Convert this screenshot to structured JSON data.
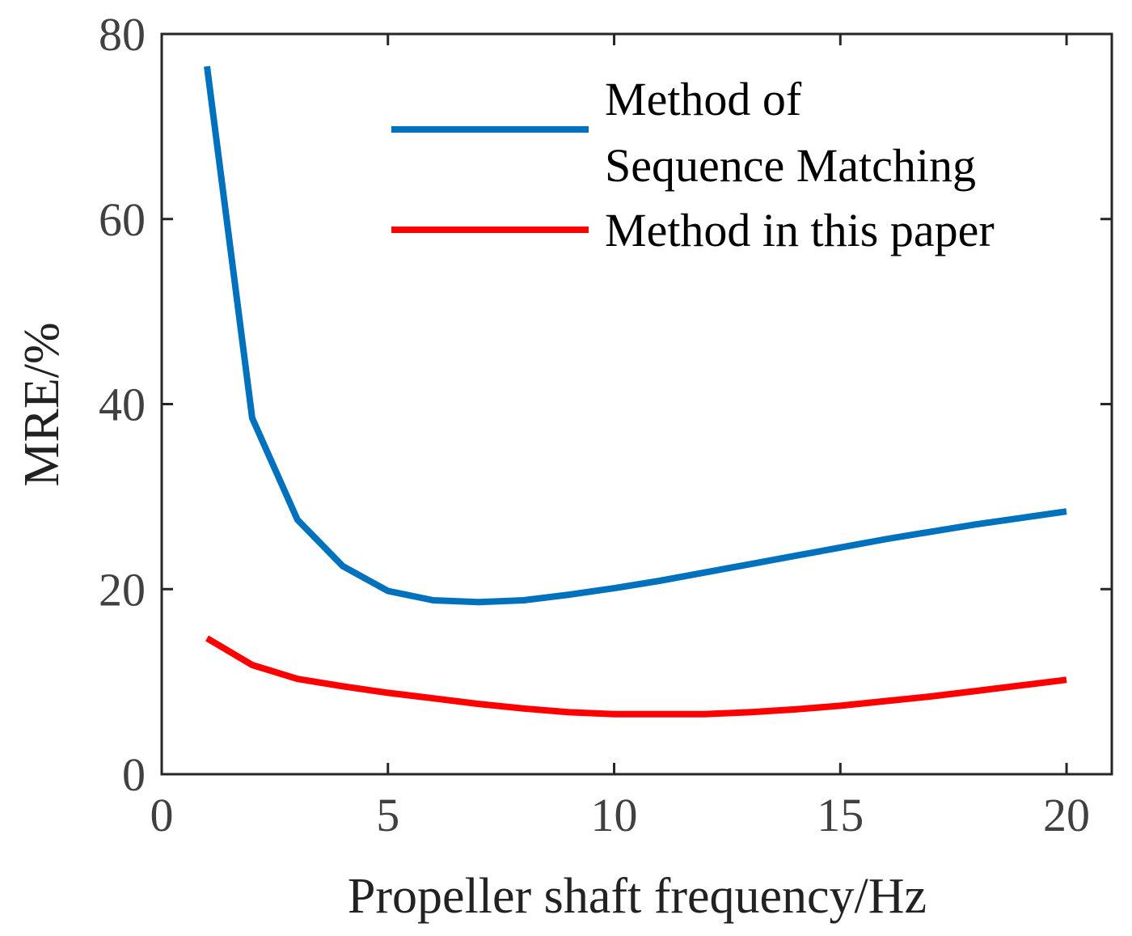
{
  "chart_data": {
    "type": "line",
    "xlabel": "Propeller shaft frequency/Hz",
    "ylabel": "MRE/%",
    "xlim": [
      0,
      21
    ],
    "ylim": [
      0,
      80
    ],
    "xticks": [
      0,
      5,
      10,
      15,
      20
    ],
    "yticks": [
      0,
      20,
      40,
      60,
      80
    ],
    "grid": false,
    "legend_position": "top-right",
    "series": [
      {
        "name_lines": [
          "Method of",
          "Sequence Matching"
        ],
        "color": "#0072BD",
        "x": [
          1,
          2,
          3,
          4,
          5,
          6,
          7,
          8,
          9,
          10,
          11,
          12,
          13,
          14,
          15,
          16,
          17,
          18,
          19,
          20
        ],
        "values": [
          76.5,
          38.5,
          27.5,
          22.5,
          19.8,
          18.8,
          18.6,
          18.8,
          19.4,
          20.1,
          20.9,
          21.8,
          22.7,
          23.6,
          24.5,
          25.4,
          26.2,
          27.0,
          27.7,
          28.4
        ]
      },
      {
        "name_lines": [
          "Method in this paper"
        ],
        "color": "#FF0000",
        "x": [
          1,
          2,
          3,
          4,
          5,
          6,
          7,
          8,
          9,
          10,
          11,
          12,
          13,
          14,
          15,
          16,
          17,
          18,
          19,
          20
        ],
        "values": [
          14.7,
          11.8,
          10.3,
          9.5,
          8.8,
          8.2,
          7.6,
          7.1,
          6.7,
          6.5,
          6.5,
          6.5,
          6.7,
          7.0,
          7.4,
          7.9,
          8.4,
          9.0,
          9.6,
          10.2
        ]
      }
    ]
  }
}
